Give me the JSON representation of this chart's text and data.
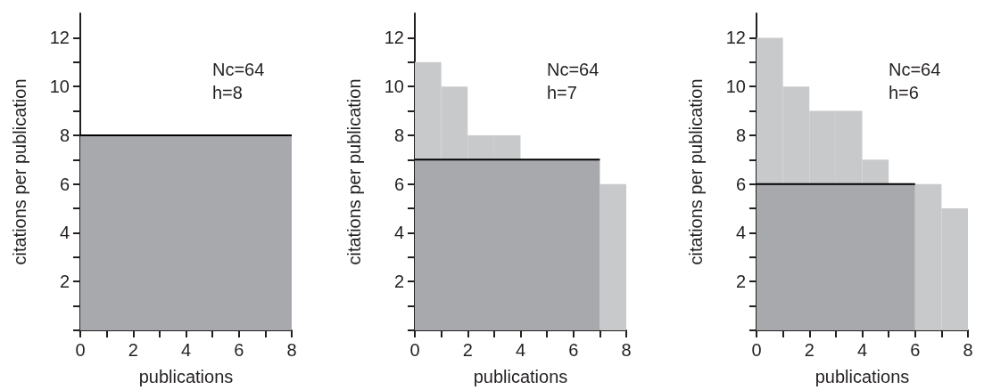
{
  "chart_data": [
    {
      "type": "area",
      "xlabel": "publications",
      "ylabel": "citations per publication",
      "xlim": [
        0,
        8
      ],
      "ylim": [
        0,
        13
      ],
      "xticks": [
        {
          "value": 0,
          "label": "0"
        },
        {
          "value": 1,
          "label": null
        },
        2,
        {
          "value": 3,
          "label": null
        },
        4,
        {
          "value": 5,
          "label": null
        },
        6,
        {
          "value": 7,
          "label": null
        },
        8
      ],
      "yticks": [
        {
          "value": 0,
          "label": null
        },
        {
          "value": 1,
          "label": null
        },
        2,
        {
          "value": 3,
          "label": null
        },
        4,
        {
          "value": 5,
          "label": null
        },
        6,
        {
          "value": 7,
          "label": null
        },
        8,
        {
          "value": 9,
          "label": null
        },
        10,
        {
          "value": 11,
          "label": null
        },
        12
      ],
      "series": [
        {
          "color": "#a8a9ac",
          "x": [
            0,
            8
          ],
          "values": [
            8,
            8
          ]
        }
      ],
      "annotations": [
        "Nc=64",
        "h=8"
      ]
    },
    {
      "type": "bar",
      "xlabel": "publications",
      "ylabel": "citations per publication",
      "xlim": [
        0,
        8
      ],
      "ylim": [
        0,
        13
      ],
      "xticks": [
        {
          "value": 0,
          "label": "0"
        },
        {
          "value": 1,
          "label": null
        },
        2,
        {
          "value": 3,
          "label": null
        },
        4,
        {
          "value": 5,
          "label": null
        },
        6,
        {
          "value": 7,
          "label": null
        },
        8
      ],
      "yticks": [
        {
          "value": 0,
          "label": null
        },
        {
          "value": 1,
          "label": null
        },
        2,
        {
          "value": 3,
          "label": null
        },
        4,
        {
          "value": 5,
          "label": null
        },
        6,
        {
          "value": 7,
          "label": null
        },
        8,
        {
          "value": 9,
          "label": null
        },
        10,
        {
          "value": 11,
          "label": null
        },
        12
      ],
      "x": [
        0.5,
        1.5,
        2.5,
        3.5,
        4.5,
        5.5,
        6.5,
        7.5
      ],
      "series": [
        {
          "type": "area",
          "color": "#a8a9ac",
          "x": [
            0,
            7
          ],
          "values": [
            7,
            7
          ]
        },
        {
          "color": "#c8c9cb",
          "base": [
            7,
            7,
            7,
            7,
            null,
            null,
            null,
            0
          ],
          "values": [
            4,
            3,
            1,
            1,
            null,
            null,
            null,
            6
          ]
        }
      ],
      "annotations": [
        "Nc=64",
        "h=7"
      ]
    },
    {
      "type": "bar",
      "xlabel": "publications",
      "ylabel": "citations per publication",
      "xlim": [
        0,
        8
      ],
      "ylim": [
        0,
        13
      ],
      "xticks": [
        {
          "value": 0,
          "label": "0"
        },
        {
          "value": 1,
          "label": null
        },
        2,
        {
          "value": 3,
          "label": null
        },
        4,
        {
          "value": 5,
          "label": null
        },
        6,
        {
          "value": 7,
          "label": null
        },
        8
      ],
      "yticks": [
        {
          "value": 0,
          "label": null
        },
        {
          "value": 1,
          "label": null
        },
        2,
        {
          "value": 3,
          "label": null
        },
        4,
        {
          "value": 5,
          "label": null
        },
        6,
        {
          "value": 7,
          "label": null
        },
        8,
        {
          "value": 9,
          "label": null
        },
        10,
        {
          "value": 11,
          "label": null
        },
        12
      ],
      "x": [
        0.5,
        1.5,
        2.5,
        3.5,
        4.5,
        5.5,
        6.5,
        7.5
      ],
      "series": [
        {
          "type": "area",
          "color": "#a8a9ac",
          "x": [
            0,
            6
          ],
          "values": [
            6,
            6
          ]
        },
        {
          "color": "#c8c9cb",
          "base": [
            6,
            6,
            6,
            6,
            6,
            null,
            0,
            0
          ],
          "values": [
            6,
            4,
            3,
            3,
            1,
            null,
            6,
            5
          ]
        }
      ],
      "annotations": [
        "Nc=64",
        "h=6"
      ]
    }
  ]
}
